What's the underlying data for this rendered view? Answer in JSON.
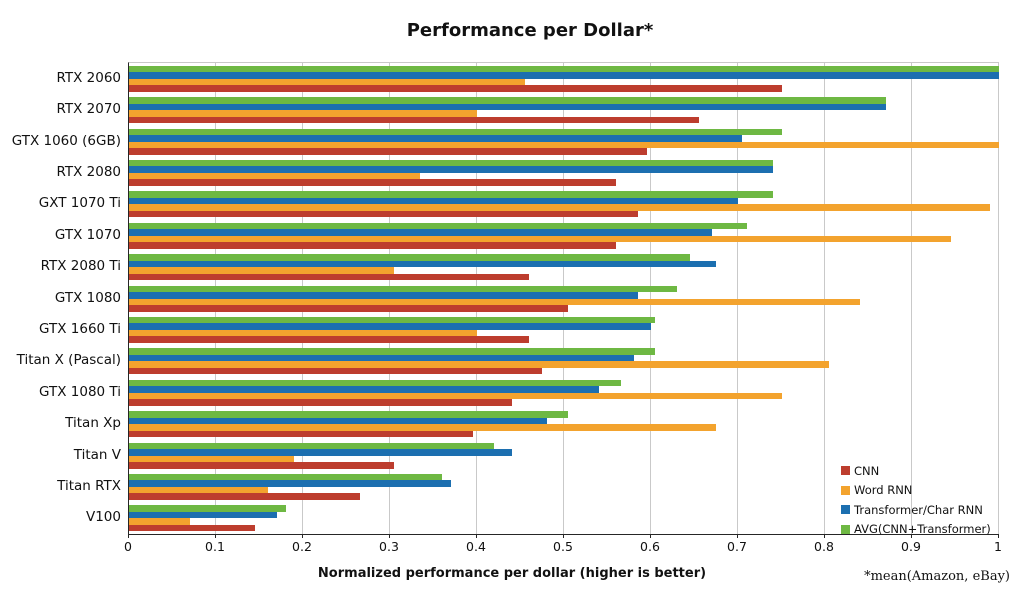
{
  "chart_data": {
    "type": "bar",
    "orientation": "horizontal",
    "title": "Performance per Dollar*",
    "xlabel": "Normalized performance per dollar (higher is better)",
    "footnote": "*mean(Amazon, eBay)",
    "xlim": [
      0,
      1
    ],
    "xticks": [
      0,
      0.1,
      0.2,
      0.3,
      0.4,
      0.5,
      0.6,
      0.7,
      0.8,
      0.9,
      1
    ],
    "xtick_labels": [
      "0",
      "0.1",
      "0.2",
      "0.3",
      "0.4",
      "0.5",
      "0.6",
      "0.7",
      "0.8",
      "0.9",
      "1"
    ],
    "grid": "vertical-gridlines-on",
    "legend_position": "inside-bottom-right",
    "categories": [
      "RTX 2060",
      "RTX 2070",
      "GTX 1060 (6GB)",
      "RTX 2080",
      "GXT 1070 Ti",
      "GTX 1070",
      "RTX 2080 Ti",
      "GTX 1080",
      "GTX 1660 Ti",
      "Titan X (Pascal)",
      "GTX 1080 Ti",
      "Titan Xp",
      "Titan V",
      "Titan RTX",
      "V100"
    ],
    "series": [
      {
        "name": "CNN",
        "color": "#bd3d2e",
        "values": [
          0.75,
          0.655,
          0.595,
          0.56,
          0.585,
          0.56,
          0.46,
          0.505,
          0.46,
          0.475,
          0.44,
          0.395,
          0.305,
          0.265,
          0.145
        ]
      },
      {
        "name": "Word RNN",
        "color": "#f3a32e",
        "values": [
          0.455,
          0.4,
          1.0,
          0.335,
          0.99,
          0.945,
          0.305,
          0.84,
          0.4,
          0.805,
          0.75,
          0.675,
          0.19,
          0.16,
          0.07
        ]
      },
      {
        "name": "Transformer/Char RNN",
        "color": "#1c6fb0",
        "values": [
          1.0,
          0.87,
          0.705,
          0.74,
          0.7,
          0.67,
          0.675,
          0.585,
          0.6,
          0.58,
          0.54,
          0.48,
          0.44,
          0.37,
          0.17
        ]
      },
      {
        "name": "AVG(CNN+Transformer)",
        "color": "#6eb843",
        "values": [
          1.0,
          0.87,
          0.75,
          0.74,
          0.74,
          0.71,
          0.645,
          0.63,
          0.605,
          0.605,
          0.565,
          0.505,
          0.42,
          0.36,
          0.18
        ]
      }
    ],
    "bar_order_top_to_bottom": [
      "AVG(CNN+Transformer)",
      "Transformer/Char RNN",
      "Word RNN",
      "CNN"
    ]
  }
}
